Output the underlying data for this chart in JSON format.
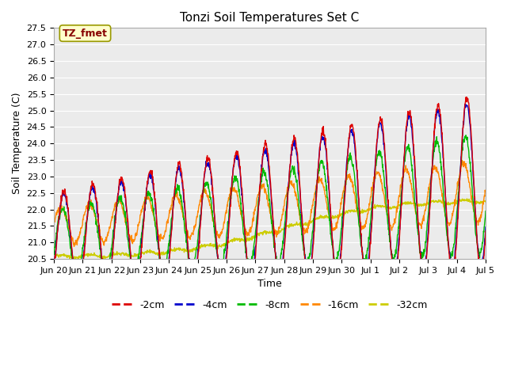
{
  "title": "Tonzi Soil Temperatures Set C",
  "xlabel": "Time",
  "ylabel": "Soil Temperature (C)",
  "ylim": [
    20.5,
    27.5
  ],
  "series_labels": [
    "-2cm",
    "-4cm",
    "-8cm",
    "-16cm",
    "-32cm"
  ],
  "series_colors": [
    "#dd0000",
    "#0000cc",
    "#00bb00",
    "#ff8800",
    "#cccc00"
  ],
  "annotation_label": "TZ_fmet",
  "annotation_color": "#880000",
  "annotation_bg": "#ffffcc",
  "annotation_edge": "#999900",
  "fig_bg": "#ffffff",
  "plot_bg": "#ebebeb",
  "grid_color": "#ffffff",
  "tick_dates": [
    "Jun 20",
    "Jun 21",
    "Jun 22",
    "Jun 23",
    "Jun 24",
    "Jun 25",
    "Jun 26",
    "Jun 27",
    "Jun 28",
    "Jun 29",
    "Jun 30",
    "Jul 1",
    "Jul 2",
    "Jul 3",
    "Jul 4",
    "Jul 5"
  ],
  "linewidth": 1.0,
  "title_fontsize": 11,
  "label_fontsize": 9,
  "tick_fontsize": 8
}
